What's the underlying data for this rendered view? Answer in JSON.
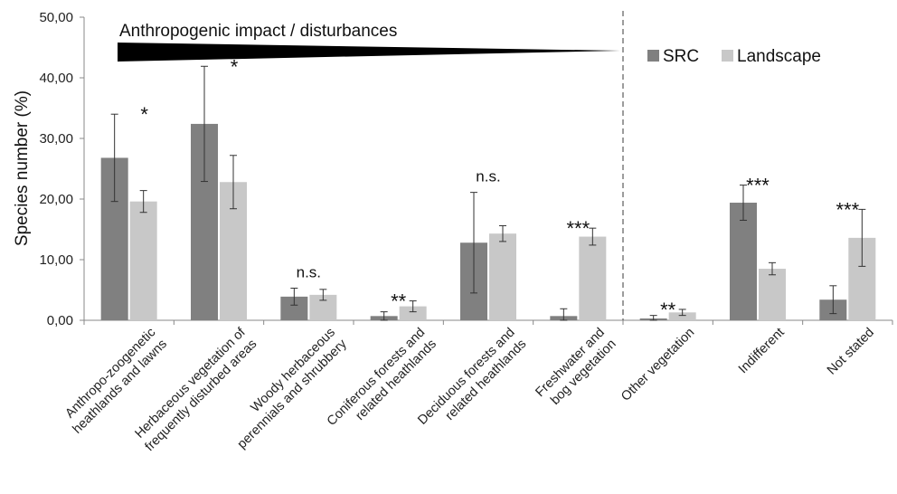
{
  "chart_data": {
    "type": "bar",
    "title": "",
    "xlabel": "",
    "ylabel": "Species number (%)",
    "ylim": [
      0,
      50
    ],
    "yticks": [
      "0,00",
      "10,00",
      "20,00",
      "30,00",
      "40,00",
      "50,00"
    ],
    "grid": false,
    "legend_position": "top-right",
    "annotation": "Anthropogenic impact / disturbances",
    "colors": {
      "SRC": "#808080",
      "Landscape": "#c8c8c8"
    },
    "categories": [
      [
        "Anthropo-zoogenetic",
        "heathlands and lawns"
      ],
      [
        "Herbaceous vegetation of",
        "frequently disturbed areas"
      ],
      [
        "Woody herbaceous",
        "perennials and shrubbery"
      ],
      [
        "Coniferous forests and",
        "related heathlands"
      ],
      [
        "Deciduous forests and",
        "related heathlands"
      ],
      [
        "Freshwater and",
        "bog vegetation"
      ],
      [
        "Other vegetation"
      ],
      [
        "Indifferent"
      ],
      [
        "Not stated"
      ]
    ],
    "series": [
      {
        "name": "SRC",
        "values": [
          26.8,
          32.4,
          3.9,
          0.7,
          12.8,
          0.7,
          0.3,
          19.4,
          3.4
        ],
        "errors": [
          7.2,
          9.5,
          1.4,
          0.7,
          8.3,
          1.2,
          0.5,
          2.9,
          2.3
        ]
      },
      {
        "name": "Landscape",
        "values": [
          19.6,
          22.8,
          4.2,
          2.3,
          14.3,
          13.8,
          1.3,
          8.5,
          13.6
        ],
        "errors": [
          1.8,
          4.4,
          0.9,
          0.9,
          1.3,
          1.4,
          0.5,
          1.0,
          4.7
        ]
      }
    ],
    "significance": [
      "*",
      "*",
      "n.s.",
      "**",
      "n.s.",
      "***",
      "**",
      "***",
      "***"
    ]
  }
}
